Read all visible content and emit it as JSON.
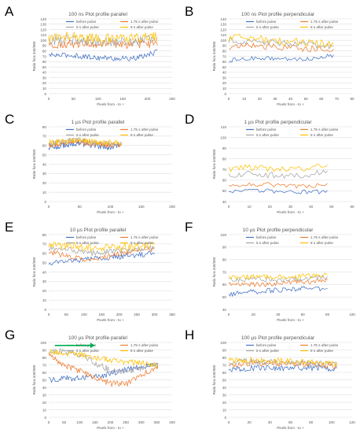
{
  "figure_labels": [
    "A",
    "B",
    "C",
    "D",
    "E",
    "F",
    "G",
    "H"
  ],
  "colors": {
    "before pulse": "#4472C4",
    "1.75 s after pulse": "#ED7D31",
    "5 s after pulse": "#A5A5A5",
    "8 s after pulse": "#FFC000",
    "arrow": "#00B050",
    "grid": "#D9D9D9",
    "axis_text": "#595959"
  },
  "chart_data": [
    {
      "panel": "A",
      "type": "line",
      "title": "100 ns Plot profile parallel",
      "xlabel": "Pixels from - to +",
      "ylabel": "Ratio fura 340/380",
      "xlim": [
        0,
        250
      ],
      "ylim": [
        0,
        140
      ],
      "xticks": [
        0,
        50,
        100,
        150,
        200,
        250
      ],
      "yticks": [
        0,
        10,
        20,
        30,
        40,
        50,
        60,
        70,
        80,
        90,
        100,
        110,
        120,
        130,
        140
      ],
      "grid": true,
      "legend_position": "top",
      "series": [
        {
          "name": "before pulse",
          "n_points": 220,
          "mean": [
            72,
            72,
            68,
            66,
            66,
            78
          ],
          "amplitude": 5
        },
        {
          "name": "1.75 s after pulse",
          "n_points": 220,
          "mean": [
            92,
            94,
            92,
            92,
            92,
            94
          ],
          "amplitude": 8
        },
        {
          "name": "5 s after pulse",
          "n_points": 220,
          "mean": [
            100,
            102,
            98,
            98,
            98,
            102
          ],
          "amplitude": 9
        },
        {
          "name": "8 s after pulse",
          "n_points": 220,
          "mean": [
            105,
            108,
            104,
            104,
            104,
            106
          ],
          "amplitude": 9
        }
      ]
    },
    {
      "panel": "B",
      "type": "line",
      "title": "100 ns Plot profile perpendicular",
      "xlabel": "Pixels from - to +",
      "ylabel": "Ratio fura 340/380",
      "xlim": [
        0,
        80
      ],
      "ylim": [
        0,
        140
      ],
      "xticks": [
        0,
        10,
        20,
        30,
        40,
        50,
        60,
        70,
        80
      ],
      "yticks": [
        0,
        10,
        20,
        30,
        40,
        50,
        60,
        70,
        80,
        90,
        100,
        110,
        120,
        130,
        140
      ],
      "grid": true,
      "legend_position": "top",
      "series": [
        {
          "name": "before pulse",
          "n_points": 68,
          "mean": [
            62,
            66,
            66,
            64,
            66,
            72
          ],
          "amplitude": 4
        },
        {
          "name": "1.75 s after pulse",
          "n_points": 68,
          "mean": [
            88,
            90,
            88,
            86,
            84,
            82
          ],
          "amplitude": 6
        },
        {
          "name": "5 s after pulse",
          "n_points": 68,
          "mean": [
            100,
            98,
            96,
            94,
            92,
            88
          ],
          "amplitude": 6
        },
        {
          "name": "8 s after pulse",
          "n_points": 68,
          "mean": [
            104,
            104,
            100,
            98,
            96,
            90
          ],
          "amplitude": 8
        }
      ]
    },
    {
      "panel": "C",
      "type": "line",
      "title": "1 µs Plot profile parallel",
      "xlabel": "Pixels from - to +",
      "ylabel": "Ratio fura 340/380",
      "xlim": [
        0,
        200
      ],
      "ylim": [
        0,
        80
      ],
      "xticks": [
        0,
        50,
        100,
        150,
        200
      ],
      "yticks": [
        0,
        10,
        20,
        30,
        40,
        50,
        60,
        70,
        80
      ],
      "grid": true,
      "legend_position": "top",
      "series": [
        {
          "name": "before pulse",
          "n_points": 118,
          "mean": [
            58,
            60,
            62,
            60,
            58,
            60
          ],
          "amplitude": 3
        },
        {
          "name": "1.75 s after pulse",
          "n_points": 118,
          "mean": [
            60,
            62,
            64,
            62,
            60,
            61
          ],
          "amplitude": 3
        },
        {
          "name": "5 s after pulse",
          "n_points": 118,
          "mean": [
            62,
            64,
            66,
            63,
            62,
            62
          ],
          "amplitude": 3
        },
        {
          "name": "8 s after pulse",
          "n_points": 118,
          "mean": [
            63,
            65,
            66,
            64,
            63,
            63
          ],
          "amplitude": 3
        }
      ]
    },
    {
      "panel": "D",
      "type": "line",
      "title": "1 µs Plot profile perpendicular",
      "xlabel": "Pixels from - to +",
      "ylabel": "Ratio fura 340/380",
      "xlim": [
        0,
        60
      ],
      "ylim": [
        40,
        110
      ],
      "xticks": [
        0,
        10,
        20,
        30,
        40,
        50,
        60
      ],
      "yticks": [
        40,
        50,
        60,
        70,
        80,
        90,
        100,
        110
      ],
      "grid": true,
      "legend_position": "top",
      "series": [
        {
          "name": "before pulse",
          "n_points": 48,
          "mean": [
            48,
            50,
            50,
            49,
            49,
            49
          ],
          "amplitude": 2
        },
        {
          "name": "1.75 s after pulse",
          "n_points": 48,
          "mean": [
            54,
            56,
            56,
            55,
            54,
            56
          ],
          "amplitude": 2
        },
        {
          "name": "5 s after pulse",
          "n_points": 48,
          "mean": [
            64,
            66,
            65,
            64,
            65,
            68
          ],
          "amplitude": 3
        },
        {
          "name": "8 s after pulse",
          "n_points": 48,
          "mean": [
            70,
            72,
            71,
            70,
            71,
            74
          ],
          "amplitude": 3
        }
      ]
    },
    {
      "panel": "E",
      "type": "line",
      "title": "10 µs Plot profile parallel",
      "xlabel": "Pixels from - to +",
      "ylabel": "Ratio fura 340/380",
      "xlim": [
        0,
        350
      ],
      "ylim": [
        0,
        80
      ],
      "xticks": [
        0,
        50,
        100,
        150,
        200,
        250,
        300,
        350
      ],
      "yticks": [
        0,
        10,
        20,
        30,
        40,
        50,
        60,
        70,
        80
      ],
      "grid": true,
      "legend_position": "top",
      "series": [
        {
          "name": "before pulse",
          "n_points": 300,
          "mean": [
            50,
            52,
            54,
            56,
            58,
            60
          ],
          "amplitude": 3
        },
        {
          "name": "1.75 s after pulse",
          "n_points": 300,
          "mean": [
            62,
            56,
            52,
            58,
            62,
            64
          ],
          "amplitude": 3
        },
        {
          "name": "5 s after pulse",
          "n_points": 300,
          "mean": [
            66,
            64,
            60,
            62,
            64,
            66
          ],
          "amplitude": 3
        },
        {
          "name": "8 s after pulse",
          "n_points": 300,
          "mean": [
            68,
            68,
            66,
            66,
            67,
            68
          ],
          "amplitude": 4
        }
      ]
    },
    {
      "panel": "F",
      "type": "line",
      "title": "10 µs Plot profile perpendicular",
      "xlabel": "Pixels from - to +",
      "ylabel": "Ratio fura 340/380",
      "xlim": [
        0,
        100
      ],
      "ylim": [
        40,
        100
      ],
      "xticks": [
        0,
        20,
        40,
        60,
        80,
        100
      ],
      "yticks": [
        40,
        50,
        60,
        70,
        80,
        90,
        100
      ],
      "grid": true,
      "legend_position": "top",
      "series": [
        {
          "name": "before pulse",
          "n_points": 80,
          "mean": [
            52,
            54,
            55,
            56,
            57,
            56
          ],
          "amplitude": 2
        },
        {
          "name": "1.75 s after pulse",
          "n_points": 80,
          "mean": [
            60,
            60,
            60,
            62,
            62,
            63
          ],
          "amplitude": 2
        },
        {
          "name": "5 s after pulse",
          "n_points": 80,
          "mean": [
            64,
            64,
            64,
            64,
            65,
            66
          ],
          "amplitude": 2
        },
        {
          "name": "8 s after pulse",
          "n_points": 80,
          "mean": [
            66,
            66,
            66,
            66,
            67,
            68
          ],
          "amplitude": 2
        }
      ]
    },
    {
      "panel": "G",
      "type": "line",
      "title": "100 µs Plot profile parallel",
      "xlabel": "Pixels from - to +",
      "ylabel": "Ratio fura 340/380",
      "xlim": [
        0,
        400
      ],
      "ylim": [
        0,
        100
      ],
      "xticks": [
        0,
        50,
        100,
        150,
        200,
        250,
        300,
        350,
        400
      ],
      "yticks": [
        0,
        10,
        20,
        30,
        40,
        50,
        60,
        70,
        80,
        90,
        100
      ],
      "grid": true,
      "legend_position": "top-right",
      "annotation": {
        "type": "arrow",
        "x": [
          20,
          150
        ],
        "y": 96
      },
      "series": [
        {
          "name": "before pulse",
          "n_points": 355,
          "mean": [
            50,
            52,
            52,
            54,
            58,
            64,
            68,
            70
          ],
          "amplitude": 4
        },
        {
          "name": "1.75 s after pulse",
          "n_points": 355,
          "mean": [
            82,
            70,
            62,
            52,
            45,
            45,
            58,
            68
          ],
          "amplitude": 4
        },
        {
          "name": "5 s after pulse",
          "n_points": 355,
          "mean": [
            88,
            88,
            84,
            72,
            62,
            62,
            66,
            70
          ],
          "amplitude": 4
        },
        {
          "name": "8 s after pulse",
          "n_points": 355,
          "mean": [
            88,
            86,
            84,
            80,
            76,
            74,
            72,
            70
          ],
          "amplitude": 4
        }
      ]
    },
    {
      "panel": "H",
      "type": "line",
      "title": "100 µs Plot profile perpendicular",
      "xlabel": "Pixels from - to +",
      "ylabel": "Ratio fura 340/380",
      "xlim": [
        0,
        120
      ],
      "ylim": [
        0,
        100
      ],
      "xticks": [
        0,
        20,
        40,
        60,
        80,
        100,
        120
      ],
      "yticks": [
        0,
        10,
        20,
        30,
        40,
        50,
        60,
        70,
        80,
        90,
        100
      ],
      "grid": true,
      "legend_position": "top",
      "series": [
        {
          "name": "before pulse",
          "n_points": 105,
          "mean": [
            64,
            66,
            66,
            66,
            66,
            64
          ],
          "amplitude": 4
        },
        {
          "name": "1.75 s after pulse",
          "n_points": 105,
          "mean": [
            70,
            72,
            72,
            72,
            70,
            68
          ],
          "amplitude": 4
        },
        {
          "name": "5 s after pulse",
          "n_points": 105,
          "mean": [
            74,
            75,
            74,
            73,
            72,
            70
          ],
          "amplitude": 4
        },
        {
          "name": "8 s after pulse",
          "n_points": 105,
          "mean": [
            76,
            76,
            76,
            74,
            73,
            71
          ],
          "amplitude": 4
        }
      ]
    }
  ]
}
